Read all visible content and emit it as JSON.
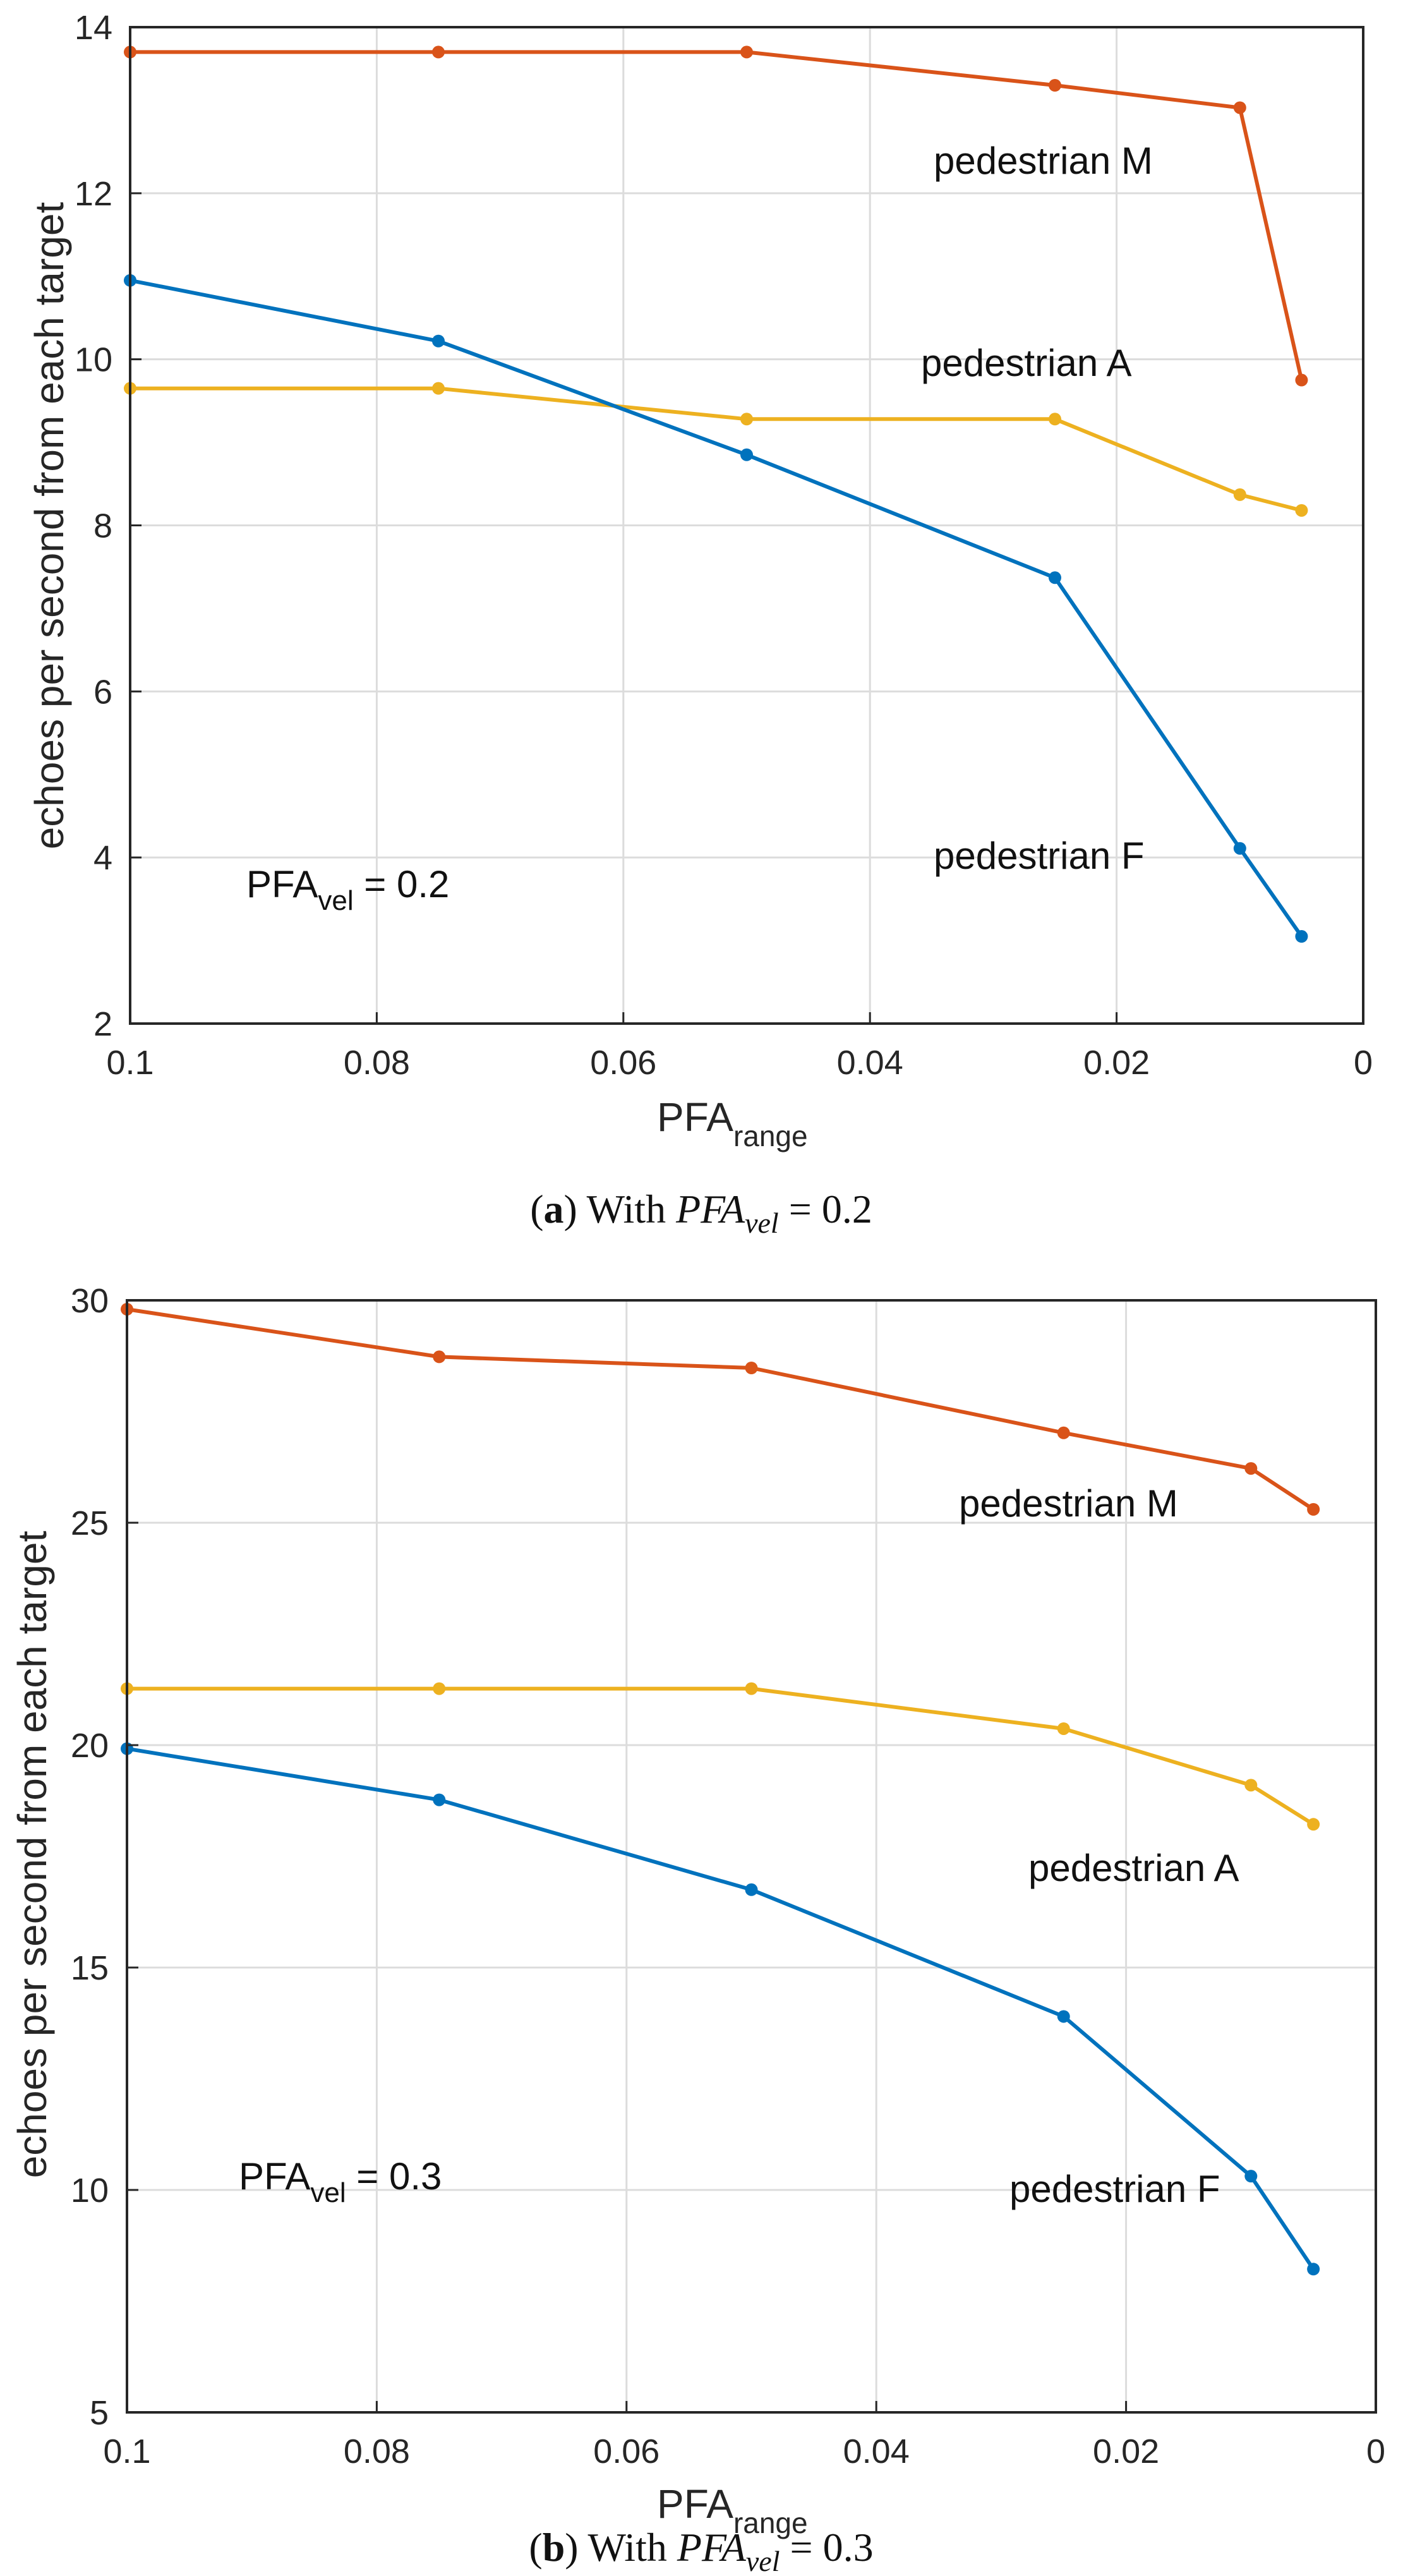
{
  "chart_data": [
    {
      "type": "line",
      "xlabel": "PFA",
      "xlabel_sub": "range",
      "ylabel": "echoes per second from each target",
      "x": [
        0.1,
        0.075,
        0.05,
        0.025,
        0.01,
        0.005
      ],
      "xlim": [
        0.1,
        0
      ],
      "ylim": [
        2,
        14
      ],
      "xticks": [
        0.1,
        0.08,
        0.06,
        0.04,
        0.02,
        0
      ],
      "xtick_labels": [
        "0.1",
        "0.08",
        "0.06",
        "0.04",
        "0.02",
        "0"
      ],
      "yticks": [
        2,
        4,
        6,
        8,
        10,
        12,
        14
      ],
      "ytick_labels": [
        "2",
        "4",
        "6",
        "8",
        "10",
        "12",
        "14"
      ],
      "series": [
        {
          "name": "pedestrian M",
          "color": "#D95319",
          "values": [
            13.7,
            13.7,
            13.7,
            13.3,
            13.03,
            9.75
          ]
        },
        {
          "name": "pedestrian A",
          "color": "#EDB120",
          "values": [
            9.65,
            9.65,
            9.28,
            9.28,
            8.37,
            8.18
          ]
        },
        {
          "name": "pedestrian F",
          "color": "#0072BD",
          "values": [
            10.95,
            10.22,
            8.85,
            7.37,
            4.11,
            3.05
          ]
        }
      ],
      "pfa_text": {
        "main": "PFA",
        "sub": "vel",
        "rest": " = 0.2"
      },
      "caption": {
        "open": "(",
        "letter": "a",
        "close": ")",
        "with": " With ",
        "pfa": "PFA",
        "sub": "vel",
        "eq": " = 0.2"
      }
    },
    {
      "type": "line",
      "xlabel": "PFA",
      "xlabel_sub": "range",
      "ylabel": "echoes per second from each target",
      "x": [
        0.1,
        0.075,
        0.05,
        0.025,
        0.01,
        0.005
      ],
      "xlim": [
        0.1,
        0
      ],
      "ylim": [
        5,
        30
      ],
      "xticks": [
        0.1,
        0.08,
        0.06,
        0.04,
        0.02,
        0
      ],
      "xtick_labels": [
        "0.1",
        "0.08",
        "0.06",
        "0.04",
        "0.02",
        "0"
      ],
      "yticks": [
        5,
        10,
        15,
        20,
        25,
        30
      ],
      "ytick_labels": [
        "5",
        "10",
        "15",
        "20",
        "25",
        "30"
      ],
      "series": [
        {
          "name": "pedestrian M",
          "color": "#D95319",
          "values": [
            29.8,
            28.73,
            28.48,
            27.02,
            26.22,
            25.3
          ]
        },
        {
          "name": "pedestrian A",
          "color": "#EDB120",
          "values": [
            21.27,
            21.27,
            21.27,
            20.37,
            19.1,
            18.22
          ]
        },
        {
          "name": "pedestrian F",
          "color": "#0072BD",
          "values": [
            19.92,
            18.77,
            16.75,
            13.9,
            10.31,
            8.22
          ]
        }
      ],
      "pfa_text": {
        "main": "PFA",
        "sub": "vel",
        "rest": " = 0.3"
      },
      "caption": {
        "open": "(",
        "letter": "b",
        "close": ")",
        "with": " With ",
        "pfa": "PFA",
        "sub": "vel",
        "eq": " = 0.3"
      }
    }
  ]
}
